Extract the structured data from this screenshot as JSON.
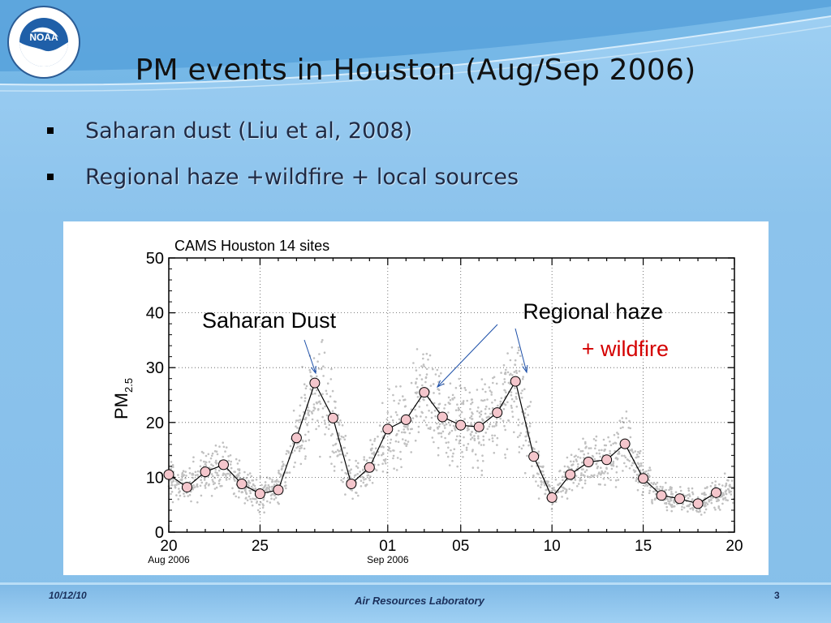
{
  "slide": {
    "title": "PM events in Houston (Aug/Sep 2006)",
    "bullets": [
      "Saharan dust (Liu et al, 2008)",
      "Regional haze +wildfire + local sources"
    ],
    "logo_text": "NOAA",
    "footer": {
      "date": "10/12/10",
      "lab": "Air Resources Laboratory",
      "page": "3"
    }
  },
  "chart_data": {
    "type": "scatter",
    "title": "CAMS Houston 14 sites",
    "ylabel_main": "PM",
    "ylabel_sub": "2.5",
    "xlabel": "",
    "ylim": [
      0,
      50
    ],
    "xlim": [
      0,
      31
    ],
    "yticks": [
      "0",
      "10",
      "20",
      "30",
      "40",
      "50"
    ],
    "xticks": [
      {
        "x": 0,
        "label": "20",
        "sub": "Aug 2006"
      },
      {
        "x": 5,
        "label": "25",
        "sub": ""
      },
      {
        "x": 12,
        "label": "01",
        "sub": "Sep 2006"
      },
      {
        "x": 16,
        "label": "05",
        "sub": ""
      },
      {
        "x": 21,
        "label": "10",
        "sub": ""
      },
      {
        "x": 26,
        "label": "15",
        "sub": ""
      },
      {
        "x": 31,
        "label": "20",
        "sub": ""
      }
    ],
    "series": [
      {
        "type": "line",
        "color": "#000000",
        "marker_fill": "#f4c6cc",
        "points": [
          [
            0,
            10.5
          ],
          [
            1,
            8.2
          ],
          [
            2,
            11
          ],
          [
            3,
            12.3
          ],
          [
            4,
            8.8
          ],
          [
            5,
            7
          ],
          [
            6,
            7.7
          ],
          [
            7,
            17.2
          ],
          [
            8,
            27.2
          ],
          [
            9,
            20.8
          ],
          [
            10,
            8.8
          ],
          [
            11,
            11.8
          ],
          [
            12,
            18.8
          ],
          [
            13,
            20.5
          ],
          [
            14,
            25.5
          ],
          [
            15,
            21
          ],
          [
            16,
            19.5
          ],
          [
            17,
            19.2
          ],
          [
            18,
            21.8
          ],
          [
            19,
            27.5
          ],
          [
            20,
            13.8
          ],
          [
            21,
            6.3
          ],
          [
            22,
            10.5
          ],
          [
            23,
            12.8
          ],
          [
            24,
            13.2
          ],
          [
            25,
            16.1
          ],
          [
            26,
            9.8
          ],
          [
            27,
            6.7
          ],
          [
            28,
            6.1
          ],
          [
            29,
            5.2
          ],
          [
            30,
            7.2
          ]
        ]
      }
    ],
    "background_points_color": "#c0c0c0",
    "annotations": [
      {
        "text": "Saharan Dust",
        "color": "#000000"
      },
      {
        "text": "Regional haze",
        "color": "#000000"
      },
      {
        "text": "+ wildfire",
        "color": "#d40000"
      }
    ]
  }
}
